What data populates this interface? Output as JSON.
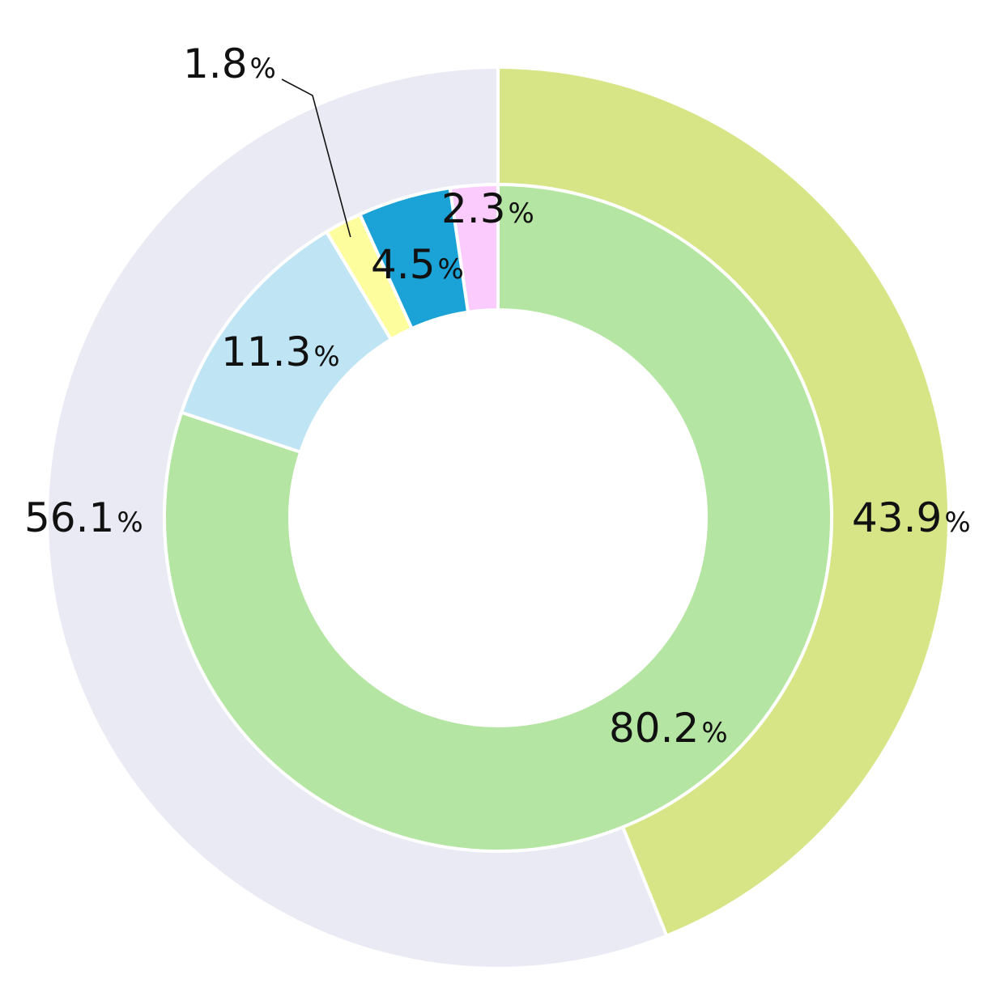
{
  "chart_data": {
    "type": "pie",
    "variant": "nested-donut",
    "unit": "%",
    "rings": [
      {
        "ring": "outer",
        "slices": [
          {
            "value": 43.9,
            "label": "43.9",
            "color": "#d7e587"
          },
          {
            "value": 56.1,
            "label": "56.1",
            "color": "#eaeaf4"
          }
        ]
      },
      {
        "ring": "inner",
        "slices": [
          {
            "value": 80.2,
            "label": "80.2",
            "color": "#b5e5a2"
          },
          {
            "value": 11.3,
            "label": "11.3",
            "color": "#bfe5f4"
          },
          {
            "value": 1.8,
            "label": "1.8",
            "color": "#fdfd9e",
            "leader_line": true
          },
          {
            "value": 4.5,
            "label": "4.5",
            "color": "#1ba3d8"
          },
          {
            "value": 2.3,
            "label": "2.3",
            "color": "#fbcbfd"
          }
        ]
      }
    ],
    "start_angle": "12 o'clock",
    "direction": "clockwise",
    "legend": "none"
  }
}
